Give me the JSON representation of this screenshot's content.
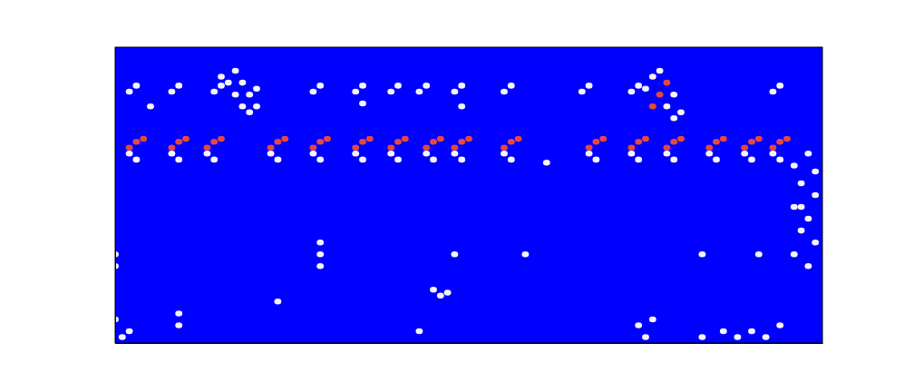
{
  "chart_data": {
    "type": "heatmap",
    "tick_labels": false,
    "xlim": [
      0,
      100
    ],
    "ylim": [
      0,
      100
    ],
    "zlim": [
      0,
      1
    ],
    "cells": [
      [
        2,
        64,
        0.5
      ],
      [
        2,
        66,
        1
      ],
      [
        3,
        68,
        1
      ],
      [
        4,
        69,
        1
      ],
      [
        3,
        62,
        0.5
      ],
      [
        8,
        64,
        0.5
      ],
      [
        8,
        66,
        1
      ],
      [
        9,
        68,
        1
      ],
      [
        10,
        69,
        1
      ],
      [
        9,
        62,
        0.5
      ],
      [
        13,
        64,
        0.5
      ],
      [
        13,
        66,
        1
      ],
      [
        14,
        68,
        1
      ],
      [
        15,
        69,
        1
      ],
      [
        14,
        62,
        0.5
      ],
      [
        22,
        64,
        0.5
      ],
      [
        22,
        66,
        1
      ],
      [
        23,
        68,
        1
      ],
      [
        24,
        69,
        1
      ],
      [
        23,
        62,
        0.5
      ],
      [
        28,
        64,
        0.5
      ],
      [
        28,
        66,
        1
      ],
      [
        29,
        68,
        1
      ],
      [
        30,
        69,
        1
      ],
      [
        29,
        62,
        0.5
      ],
      [
        34,
        64,
        0.5
      ],
      [
        34,
        66,
        1
      ],
      [
        35,
        68,
        1
      ],
      [
        36,
        69,
        1
      ],
      [
        35,
        62,
        0.5
      ],
      [
        39,
        64,
        0.5
      ],
      [
        39,
        66,
        1
      ],
      [
        40,
        68,
        1
      ],
      [
        41,
        69,
        1
      ],
      [
        40,
        62,
        0.5
      ],
      [
        44,
        64,
        0.5
      ],
      [
        44,
        66,
        1
      ],
      [
        45,
        68,
        1
      ],
      [
        46,
        69,
        1
      ],
      [
        45,
        62,
        0.5
      ],
      [
        48,
        64,
        0.5
      ],
      [
        48,
        66,
        1
      ],
      [
        49,
        68,
        1
      ],
      [
        50,
        69,
        1
      ],
      [
        49,
        62,
        0.5
      ],
      [
        55,
        64,
        0.5
      ],
      [
        55,
        66,
        1
      ],
      [
        56,
        68,
        1
      ],
      [
        57,
        69,
        1
      ],
      [
        56,
        62,
        0.5
      ],
      [
        67,
        64,
        0.5
      ],
      [
        67,
        66,
        1
      ],
      [
        68,
        68,
        1
      ],
      [
        69,
        69,
        1
      ],
      [
        68,
        62,
        0.5
      ],
      [
        73,
        64,
        0.5
      ],
      [
        73,
        66,
        1
      ],
      [
        74,
        68,
        1
      ],
      [
        75,
        69,
        1
      ],
      [
        74,
        62,
        0.5
      ],
      [
        78,
        64,
        0.5
      ],
      [
        78,
        66,
        1
      ],
      [
        79,
        68,
        1
      ],
      [
        80,
        69,
        1
      ],
      [
        79,
        62,
        0.5
      ],
      [
        84,
        64,
        0.5
      ],
      [
        84,
        66,
        1
      ],
      [
        85,
        68,
        1
      ],
      [
        86,
        69,
        1
      ],
      [
        85,
        62,
        0.5
      ],
      [
        89,
        64,
        0.5
      ],
      [
        89,
        66,
        1
      ],
      [
        90,
        68,
        1
      ],
      [
        91,
        69,
        1
      ],
      [
        90,
        62,
        0.5
      ],
      [
        93,
        64,
        0.5
      ],
      [
        93,
        66,
        1
      ],
      [
        94,
        68,
        1
      ],
      [
        95,
        69,
        1
      ],
      [
        94,
        62,
        0.5
      ],
      [
        2,
        85,
        0.5
      ],
      [
        3,
        87,
        0.5
      ],
      [
        8,
        85,
        0.5
      ],
      [
        9,
        87,
        0.5
      ],
      [
        14,
        85,
        0.5
      ],
      [
        15,
        87,
        0.5
      ],
      [
        28,
        85,
        0.5
      ],
      [
        29,
        87,
        0.5
      ],
      [
        34,
        85,
        0.5
      ],
      [
        35,
        87,
        0.5
      ],
      [
        39,
        85,
        0.5
      ],
      [
        40,
        87,
        0.5
      ],
      [
        43,
        85,
        0.5
      ],
      [
        44,
        87,
        0.5
      ],
      [
        48,
        85,
        0.5
      ],
      [
        49,
        87,
        0.5
      ],
      [
        55,
        85,
        0.5
      ],
      [
        56,
        87,
        0.5
      ],
      [
        66,
        85,
        0.5
      ],
      [
        67,
        87,
        0.5
      ],
      [
        73,
        85,
        0.5
      ],
      [
        74,
        87,
        0.5
      ],
      [
        93,
        85,
        0.5
      ],
      [
        94,
        87,
        0.5
      ],
      [
        5,
        80,
        0.5
      ],
      [
        35,
        81,
        0.5
      ],
      [
        49,
        80,
        0.5
      ],
      [
        16,
        88,
        0.5
      ],
      [
        17,
        84,
        0.5
      ],
      [
        17,
        92,
        0.5
      ],
      [
        18,
        80,
        0.5
      ],
      [
        18,
        88,
        0.5
      ],
      [
        19,
        84,
        0.5
      ],
      [
        19,
        78,
        0.5
      ],
      [
        20,
        86,
        0.5
      ],
      [
        20,
        80,
        0.5
      ],
      [
        15,
        90,
        0.5
      ],
      [
        75,
        86,
        0.5
      ],
      [
        76,
        90,
        0.5
      ],
      [
        76,
        80,
        1
      ],
      [
        77,
        84,
        1
      ],
      [
        78,
        88,
        1
      ],
      [
        78,
        80,
        0.5
      ],
      [
        79,
        84,
        0.5
      ],
      [
        80,
        78,
        0.5
      ],
      [
        77,
        92,
        0.5
      ],
      [
        79,
        76,
        0.5
      ],
      [
        96,
        60,
        0.5
      ],
      [
        98,
        64,
        0.5
      ],
      [
        97,
        54,
        0.5
      ],
      [
        99,
        50,
        0.5
      ],
      [
        96,
        46,
        0.5
      ],
      [
        98,
        42,
        0.5
      ],
      [
        97,
        38,
        0.5
      ],
      [
        99,
        34,
        0.5
      ],
      [
        96,
        30,
        0.5
      ],
      [
        98,
        26,
        0.5
      ],
      [
        99,
        58,
        0.5
      ],
      [
        97,
        46,
        0.5
      ],
      [
        0,
        30,
        0.5
      ],
      [
        0,
        26,
        0.5
      ],
      [
        29,
        34,
        0.5
      ],
      [
        29,
        30,
        0.5
      ],
      [
        29,
        26,
        0.5
      ],
      [
        45,
        18,
        0.5
      ],
      [
        46,
        16,
        0.5
      ],
      [
        47,
        17,
        0.5
      ],
      [
        48,
        30,
        0.5
      ],
      [
        58,
        30,
        0.5
      ],
      [
        9,
        10,
        0.5
      ],
      [
        9,
        6,
        0.5
      ],
      [
        0,
        8,
        0.5
      ],
      [
        1,
        2,
        0.5
      ],
      [
        2,
        4,
        0.5
      ],
      [
        23,
        14,
        0.5
      ],
      [
        74,
        6,
        0.5
      ],
      [
        75,
        2,
        0.5
      ],
      [
        76,
        8,
        0.5
      ],
      [
        83,
        2,
        0.5
      ],
      [
        86,
        4,
        0.5
      ],
      [
        88,
        2,
        0.5
      ],
      [
        90,
        4,
        0.5
      ],
      [
        92,
        2,
        0.5
      ],
      [
        94,
        6,
        0.5
      ],
      [
        83,
        30,
        0.5
      ],
      [
        91,
        30,
        0.5
      ],
      [
        43,
        4,
        0.5
      ],
      [
        61,
        61,
        0.5
      ]
    ]
  }
}
